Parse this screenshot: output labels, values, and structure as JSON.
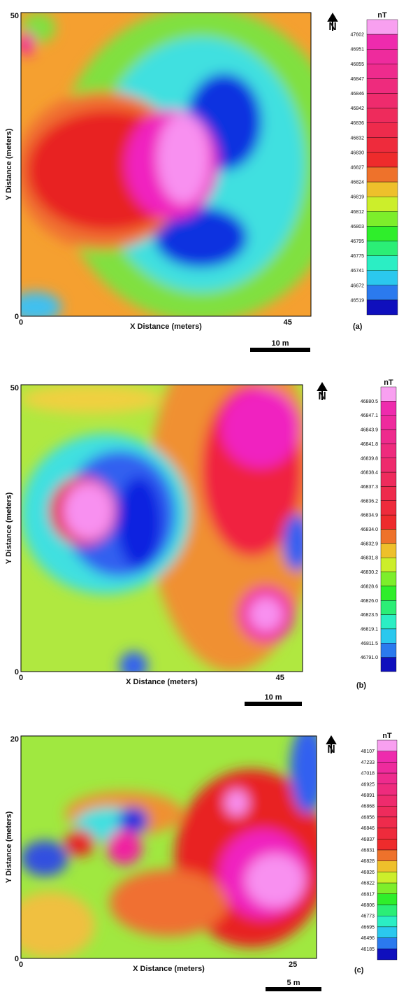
{
  "panels": [
    {
      "label": "(a)",
      "x_axis_label": "X Distance (meters)",
      "y_axis_label": "Y Distance (meters)",
      "x_ticks": [
        "0",
        "45"
      ],
      "y_ticks": [
        "0",
        "50"
      ],
      "unit": "nT",
      "north": "N",
      "scale_bar": "10 m",
      "legend_levels": [
        "47602",
        "46951",
        "46855",
        "46847",
        "46846",
        "46842",
        "46836",
        "46832",
        "46830",
        "46827",
        "46824",
        "46819",
        "46812",
        "46803",
        "46795",
        "46775",
        "46741",
        "46672",
        "46519"
      ]
    },
    {
      "label": "(b)",
      "x_axis_label": "X Distance (meters)",
      "y_axis_label": "Y Distance (meters)",
      "x_ticks": [
        "0",
        "45"
      ],
      "y_ticks": [
        "0",
        "50"
      ],
      "unit": "nT",
      "north": "N",
      "scale_bar": "10 m",
      "legend_levels": [
        "46880.5",
        "46847.1",
        "46843.9",
        "46841.8",
        "46839.8",
        "46838.4",
        "46837.3",
        "46836.2",
        "46834.9",
        "46834.0",
        "46832.9",
        "46831.8",
        "46830.2",
        "46828.6",
        "46826.0",
        "46823.5",
        "46819.1",
        "46811.5",
        "46791.0"
      ]
    },
    {
      "label": "(c)",
      "x_axis_label": "X Distance (meters)",
      "y_axis_label": "Y Distance (meters)",
      "x_ticks": [
        "0",
        "25"
      ],
      "y_ticks": [
        "0",
        "20"
      ],
      "unit": "nT",
      "north": "N",
      "scale_bar": "5 m",
      "legend_levels": [
        "48107",
        "47233",
        "47018",
        "46925",
        "46891",
        "46868",
        "46856",
        "46846",
        "46837",
        "46831",
        "46828",
        "46826",
        "46822",
        "46817",
        "46806",
        "46773",
        "46695",
        "46496",
        "46185"
      ]
    }
  ]
}
